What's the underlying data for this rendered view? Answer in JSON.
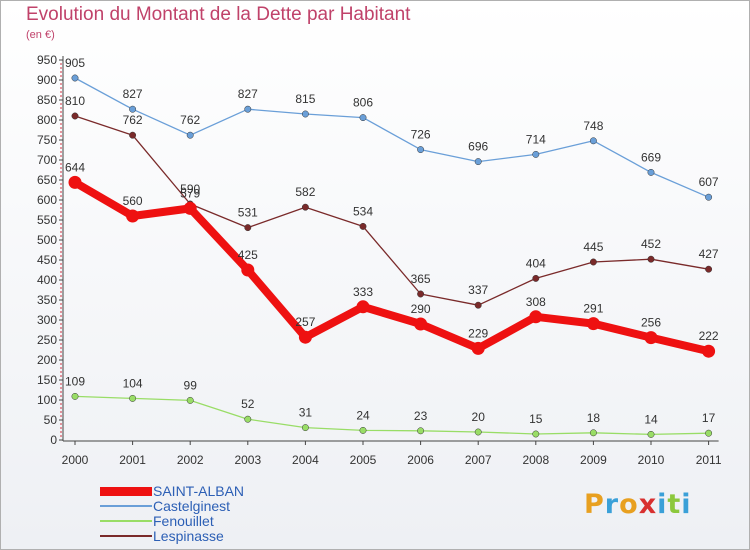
{
  "header": {
    "title": "Evolution du Montant de la Dette par Habitant",
    "subtitle": "(en €)"
  },
  "logo": {
    "text": "Proxiti",
    "colors": [
      "#e8a020",
      "#3aa0d8",
      "#e8a020",
      "#d83030",
      "#3aa0d8",
      "#8cc83c",
      "#3aa0d8"
    ]
  },
  "chart_data": {
    "type": "line",
    "categories": [
      "2000",
      "2001",
      "2002",
      "2003",
      "2004",
      "2005",
      "2006",
      "2007",
      "2008",
      "2009",
      "2010",
      "2011"
    ],
    "y_ticks": [
      "0",
      "50",
      "100",
      "150",
      "200",
      "250",
      "300",
      "350",
      "400",
      "450",
      "500",
      "550",
      "600",
      "650",
      "700",
      "750",
      "800",
      "850",
      "900",
      "950"
    ],
    "ylim": [
      0,
      950
    ],
    "grid": false,
    "legend_position": "bottom-left",
    "series": [
      {
        "name": "SAINT-ALBAN",
        "color": "#ee1111",
        "values": [
          644,
          560,
          579,
          425,
          257,
          333,
          290,
          229,
          308,
          291,
          256,
          222
        ],
        "labels": [
          "644",
          "560",
          "579",
          "425",
          "257",
          "333",
          "290",
          "229",
          "308",
          "291",
          "256",
          "222"
        ]
      },
      {
        "name": "Castelginest",
        "color": "#6a9fd8",
        "values": [
          905,
          827,
          762,
          827,
          815,
          806,
          726,
          696,
          714,
          748,
          669,
          607
        ],
        "labels": [
          "905",
          "827",
          "762",
          "827",
          "815",
          "806",
          "726",
          "696",
          "714",
          "748",
          "669",
          "607"
        ]
      },
      {
        "name": "Fenouillet",
        "color": "#99dd66",
        "values": [
          109,
          104,
          99,
          52,
          31,
          24,
          23,
          20,
          15,
          18,
          14,
          17
        ],
        "labels": [
          "109",
          "104",
          "99",
          "52",
          "31",
          "24",
          "23",
          "20",
          "15",
          "18",
          "14",
          "17"
        ]
      },
      {
        "name": "Lespinasse",
        "color": "#7a2a2a",
        "values": [
          810,
          762,
          590,
          531,
          582,
          534,
          365,
          337,
          404,
          445,
          452,
          427
        ],
        "labels": [
          "810",
          "762",
          "590",
          "531",
          "582",
          "534",
          "365",
          "337",
          "404",
          "445",
          "452",
          "427"
        ]
      }
    ]
  }
}
